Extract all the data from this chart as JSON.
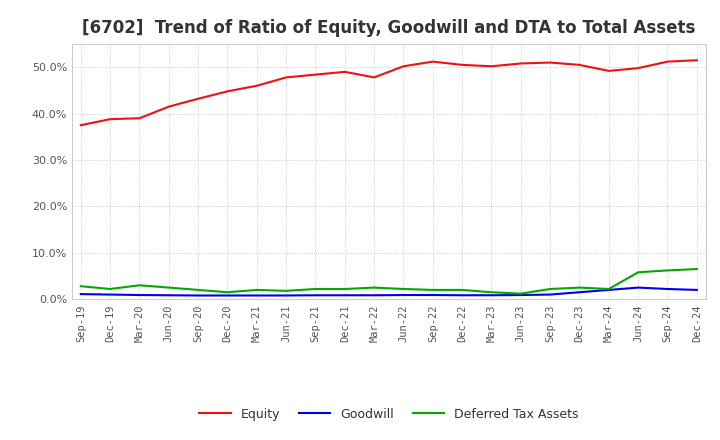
{
  "title": "[6702]  Trend of Ratio of Equity, Goodwill and DTA to Total Assets",
  "x_labels": [
    "Sep-19",
    "Dec-19",
    "Mar-20",
    "Jun-20",
    "Sep-20",
    "Dec-20",
    "Mar-21",
    "Jun-21",
    "Sep-21",
    "Dec-21",
    "Mar-22",
    "Jun-22",
    "Sep-22",
    "Dec-22",
    "Mar-23",
    "Jun-23",
    "Sep-23",
    "Dec-23",
    "Mar-24",
    "Jun-24",
    "Sep-24",
    "Dec-24"
  ],
  "equity": [
    37.5,
    38.8,
    39.0,
    41.5,
    43.2,
    44.8,
    46.0,
    47.8,
    48.4,
    49.0,
    47.8,
    50.2,
    51.2,
    50.5,
    50.2,
    50.8,
    51.0,
    50.5,
    49.2,
    49.8,
    51.2,
    51.5
  ],
  "goodwill": [
    1.1,
    1.0,
    0.9,
    0.85,
    0.8,
    0.8,
    0.8,
    0.8,
    0.85,
    0.85,
    0.85,
    0.9,
    0.9,
    0.85,
    0.85,
    0.9,
    1.0,
    1.5,
    2.0,
    2.5,
    2.2,
    2.0
  ],
  "dta": [
    2.8,
    2.2,
    3.0,
    2.5,
    2.0,
    1.5,
    2.0,
    1.8,
    2.2,
    2.2,
    2.5,
    2.2,
    2.0,
    2.0,
    1.5,
    1.2,
    2.2,
    2.5,
    2.2,
    5.8,
    6.2,
    6.5
  ],
  "equity_color": "#ee1111",
  "goodwill_color": "#0000ee",
  "dta_color": "#00aa00",
  "ylim": [
    0,
    55
  ],
  "yticks": [
    0.0,
    10.0,
    20.0,
    30.0,
    40.0,
    50.0
  ],
  "background_color": "#ffffff",
  "grid_color": "#aaaaaa",
  "title_fontsize": 12,
  "legend_labels": [
    "Equity",
    "Goodwill",
    "Deferred Tax Assets"
  ]
}
